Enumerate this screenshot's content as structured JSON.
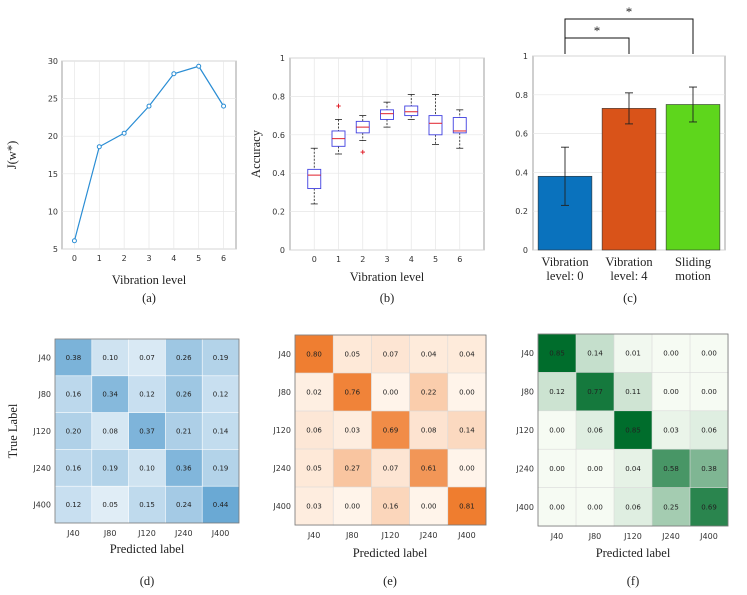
{
  "chart_data": [
    {
      "id": "a",
      "type": "line",
      "caption": "(a)",
      "xlabel": "Vibration level",
      "ylabel": "J(w*)",
      "x": [
        0,
        1,
        2,
        3,
        4,
        5,
        6
      ],
      "y": [
        6.1,
        18.6,
        20.4,
        24.0,
        28.3,
        29.3,
        24.0
      ],
      "xlim": [
        -0.5,
        6.5
      ],
      "ylim": [
        5,
        30
      ],
      "yticks": [
        5,
        10,
        15,
        20,
        25,
        30
      ],
      "color": "#2a8dd4"
    },
    {
      "id": "b",
      "type": "box",
      "caption": "(b)",
      "xlabel": "Vibration level",
      "ylabel": "Accuracy",
      "categories": [
        "0",
        "1",
        "2",
        "3",
        "4",
        "5",
        "6"
      ],
      "ylim": [
        0,
        1
      ],
      "yticks": [
        0,
        0.2,
        0.4,
        0.6,
        0.8,
        1
      ],
      "boxes": [
        {
          "min": 0.24,
          "q1": 0.32,
          "median": 0.39,
          "q3": 0.42,
          "max": 0.53,
          "outliers": []
        },
        {
          "min": 0.5,
          "q1": 0.54,
          "median": 0.58,
          "q3": 0.62,
          "max": 0.68,
          "outliers": [
            0.75
          ]
        },
        {
          "min": 0.57,
          "q1": 0.61,
          "median": 0.64,
          "q3": 0.67,
          "max": 0.7,
          "outliers": [
            0.51
          ]
        },
        {
          "min": 0.64,
          "q1": 0.68,
          "median": 0.71,
          "q3": 0.73,
          "max": 0.77,
          "outliers": []
        },
        {
          "min": 0.68,
          "q1": 0.7,
          "median": 0.72,
          "q3": 0.75,
          "max": 0.81,
          "outliers": []
        },
        {
          "min": 0.55,
          "q1": 0.6,
          "median": 0.66,
          "q3": 0.7,
          "max": 0.81,
          "outliers": []
        },
        {
          "min": 0.53,
          "q1": 0.61,
          "median": 0.62,
          "q3": 0.69,
          "max": 0.73,
          "outliers": []
        }
      ],
      "box_color": "#4040e0",
      "median_color": "#e0202a"
    },
    {
      "id": "c",
      "type": "bar",
      "caption": "(c)",
      "categories": [
        [
          "Vibration",
          "level: 0"
        ],
        [
          "Vibration",
          "level: 4"
        ],
        [
          "Sliding",
          "motion"
        ]
      ],
      "values": [
        0.38,
        0.73,
        0.75
      ],
      "errors": [
        0.15,
        0.08,
        0.09
      ],
      "colors": [
        "#0a72bd",
        "#d95319",
        "#5ed61c"
      ],
      "ylim": [
        0,
        1
      ],
      "yticks": [
        0,
        0.2,
        0.4,
        0.6,
        0.8,
        1
      ],
      "significance": [
        {
          "from": 0,
          "to": 1,
          "label": "*"
        },
        {
          "from": 0,
          "to": 2,
          "label": "*"
        }
      ]
    },
    {
      "id": "d",
      "type": "heatmap",
      "caption": "(d)",
      "xlabel": "Predicted label",
      "ylabel": "True Label",
      "labels": [
        "J40",
        "J80",
        "J120",
        "J240",
        "J400"
      ],
      "matrix": [
        [
          0.38,
          0.1,
          0.07,
          0.26,
          0.19
        ],
        [
          0.16,
          0.34,
          0.12,
          0.26,
          0.12
        ],
        [
          0.2,
          0.08,
          0.37,
          0.21,
          0.14
        ],
        [
          0.16,
          0.19,
          0.1,
          0.36,
          0.19
        ],
        [
          0.12,
          0.05,
          0.15,
          0.24,
          0.44
        ]
      ],
      "colormap": [
        "#f3f8fc",
        "#6aa9d4"
      ]
    },
    {
      "id": "e",
      "type": "heatmap",
      "caption": "(e)",
      "xlabel": "Predicted label",
      "ylabel": "",
      "labels": [
        "J40",
        "J80",
        "J120",
        "J240",
        "J400"
      ],
      "matrix": [
        [
          0.8,
          0.05,
          0.07,
          0.04,
          0.04
        ],
        [
          0.02,
          0.76,
          0.0,
          0.22,
          0.0
        ],
        [
          0.06,
          0.03,
          0.69,
          0.08,
          0.14
        ],
        [
          0.05,
          0.27,
          0.07,
          0.61,
          0.0
        ],
        [
          0.03,
          0.0,
          0.16,
          0.0,
          0.81
        ]
      ],
      "colormap": [
        "#fff4ea",
        "#ef7d2f"
      ]
    },
    {
      "id": "f",
      "type": "heatmap",
      "caption": "(f)",
      "xlabel": "Predicted label",
      "ylabel": "",
      "labels": [
        "J40",
        "J80",
        "J120",
        "J240",
        "J400"
      ],
      "matrix": [
        [
          0.85,
          0.14,
          0.01,
          0.0,
          0.0
        ],
        [
          0.12,
          0.77,
          0.11,
          0.0,
          0.0
        ],
        [
          0.0,
          0.06,
          0.85,
          0.03,
          0.06
        ],
        [
          0.0,
          0.0,
          0.04,
          0.58,
          0.38
        ],
        [
          0.0,
          0.0,
          0.06,
          0.25,
          0.69
        ]
      ],
      "colormap": [
        "#f6fbf3",
        "#006d2c"
      ]
    }
  ]
}
